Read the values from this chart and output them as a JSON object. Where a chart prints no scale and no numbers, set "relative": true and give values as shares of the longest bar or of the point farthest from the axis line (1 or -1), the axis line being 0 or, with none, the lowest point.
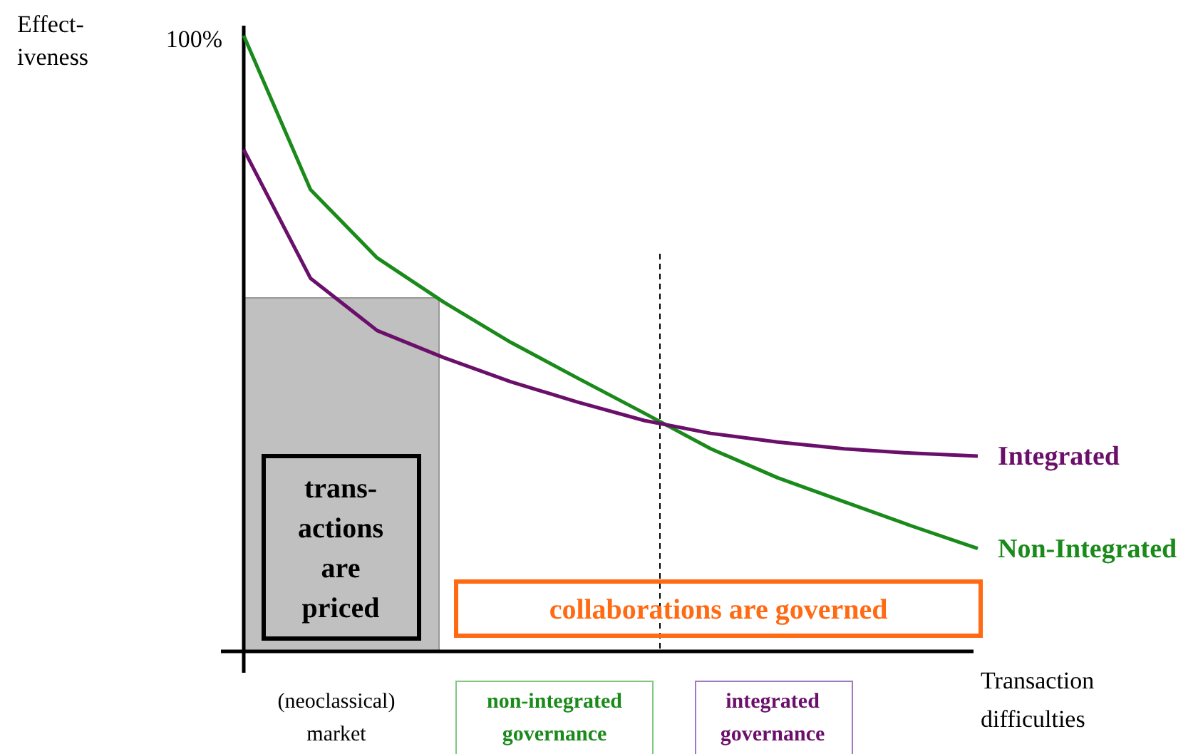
{
  "chart_data": {
    "type": "line",
    "relative": true,
    "categories": [
      null,
      null,
      null,
      null,
      null,
      null,
      null,
      null,
      null,
      null,
      null,
      null
    ],
    "xlabel": "Transaction difficulties",
    "line_style": "solid",
    "marker": "none",
    "series": [
      {
        "name": "Non-Integrated",
        "color": "#1a8a1a",
        "values": [
          1.0,
          0.75,
          0.639,
          0.567,
          0.502,
          0.444,
          0.387,
          0.329,
          0.282,
          0.243,
          0.204,
          0.167
        ]
      },
      {
        "name": "Integrated",
        "color": "#6a0f6a",
        "values": [
          0.815,
          0.606,
          0.521,
          0.477,
          0.438,
          0.405,
          0.375,
          0.354,
          0.34,
          0.329,
          0.322,
          0.317
        ]
      }
    ],
    "annotations": [
      "Effect- iveness",
      "100%",
      "trans- actions are priced",
      "collaborations are governed",
      "(neoclassical) market",
      "non-integrated governance",
      "integrated governance"
    ]
  }
}
